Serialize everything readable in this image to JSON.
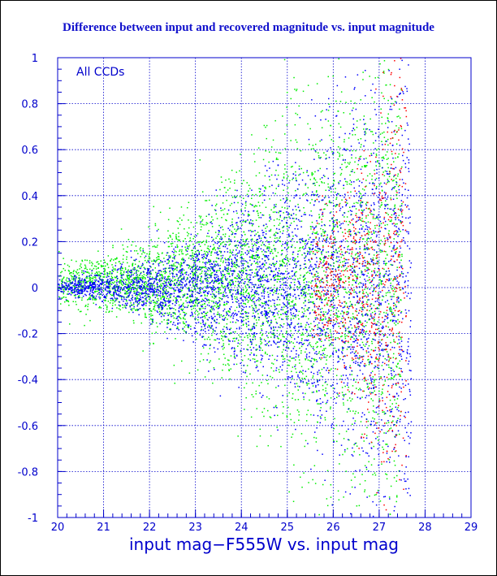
{
  "chart_data": {
    "type": "scatter",
    "title": "Difference between input and recovered magnitude vs. input magnitude",
    "xlabel": "input mag−F555W vs. input mag",
    "ylabel": "",
    "annotation": "All CCDs",
    "xlim": [
      20,
      29
    ],
    "ylim": [
      -1,
      1
    ],
    "xticks": [
      "20",
      "21",
      "22",
      "23",
      "24",
      "25",
      "26",
      "27",
      "28",
      "29"
    ],
    "yticks": [
      "1",
      "0.8",
      "0.6",
      "0.4",
      "0.2",
      "0",
      "-0.2",
      "-0.4",
      "-0.6",
      "-0.8",
      "-1"
    ],
    "grid": true,
    "series": [
      {
        "color": "#00ee00",
        "x_range": [
          20,
          27.5
        ],
        "y_center": 0.02,
        "y_spread_at_start": 0.05,
        "y_spread_at_end": 0.6
      },
      {
        "color": "#0000ff",
        "x_range": [
          20,
          27.7
        ],
        "y_center": 0.0,
        "y_spread_at_start": 0.02,
        "y_spread_at_end": 0.5
      },
      {
        "color": "#ff0000",
        "x_range": [
          25.5,
          27.6
        ],
        "y_center": 0.0,
        "y_spread_at_start": 0.15,
        "y_spread_at_end": 0.6
      }
    ]
  },
  "colors": {
    "axis": "#0000cc",
    "grid": "#0000cc",
    "title": "#1010cc"
  }
}
